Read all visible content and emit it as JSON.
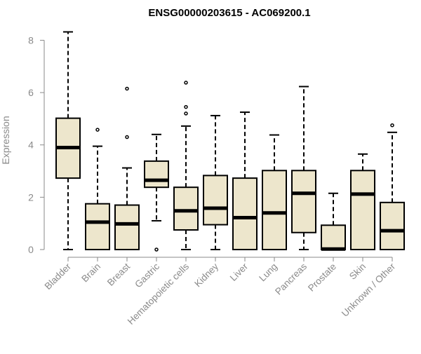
{
  "chart_data": {
    "type": "boxplot",
    "title": "ENSG00000203615 - AC069200.1",
    "xlabel": "",
    "ylabel": "Expression",
    "ylim": [
      0,
      8.4
    ],
    "yticks": [
      0,
      2,
      4,
      6,
      8
    ],
    "grid": false,
    "legend": "none",
    "colors": {
      "box_fill": "#ede6cc",
      "box_stroke": "#000000",
      "median": "#000000",
      "axis_text": "#8a8a8a",
      "axis_line": "#8a8a8a"
    },
    "categories": [
      "Bladder",
      "Brain",
      "Breast",
      "Gastric",
      "Hematopoietic cells",
      "Kidney",
      "Liver",
      "Lung",
      "Pancreas",
      "Prostate",
      "Skin",
      "Unknown / Other"
    ],
    "boxes": [
      {
        "category": "Bladder",
        "whisker_low": 0,
        "q1": 2.73,
        "median": 3.9,
        "q3": 5.02,
        "whisker_high": 8.32,
        "outliers": []
      },
      {
        "category": "Brain",
        "whisker_low": 0,
        "q1": 0,
        "median": 1.05,
        "q3": 1.75,
        "whisker_high": 3.95,
        "outliers": [
          4.58
        ]
      },
      {
        "category": "Breast",
        "whisker_low": 0,
        "q1": 0,
        "median": 0.98,
        "q3": 1.7,
        "whisker_high": 3.12,
        "outliers": [
          4.3,
          6.15
        ]
      },
      {
        "category": "Gastric",
        "whisker_low": 1.1,
        "q1": 2.38,
        "median": 2.65,
        "q3": 3.38,
        "whisker_high": 4.4,
        "outliers": [
          0
        ]
      },
      {
        "category": "Hematopoietic cells",
        "whisker_low": 0,
        "q1": 0.75,
        "median": 1.48,
        "q3": 2.38,
        "whisker_high": 4.72,
        "outliers": [
          5.2,
          5.45,
          6.38
        ]
      },
      {
        "category": "Kidney",
        "whisker_low": 0,
        "q1": 0.95,
        "median": 1.58,
        "q3": 2.83,
        "whisker_high": 5.12,
        "outliers": []
      },
      {
        "category": "Liver",
        "whisker_low": 0,
        "q1": 0,
        "median": 1.22,
        "q3": 2.73,
        "whisker_high": 5.25,
        "outliers": []
      },
      {
        "category": "Lung",
        "whisker_low": 0,
        "q1": 0,
        "median": 1.4,
        "q3": 3.02,
        "whisker_high": 4.38,
        "outliers": []
      },
      {
        "category": "Pancreas",
        "whisker_low": 0,
        "q1": 0.65,
        "median": 2.15,
        "q3": 3.02,
        "whisker_high": 6.23,
        "outliers": []
      },
      {
        "category": "Prostate",
        "whisker_low": 0,
        "q1": 0,
        "median": 0.02,
        "q3": 0.93,
        "whisker_high": 2.15,
        "outliers": []
      },
      {
        "category": "Skin",
        "whisker_low": 0,
        "q1": 0,
        "median": 2.12,
        "q3": 3.02,
        "whisker_high": 3.65,
        "outliers": []
      },
      {
        "category": "Unknown / Other",
        "whisker_low": 0,
        "q1": 0,
        "median": 0.72,
        "q3": 1.8,
        "whisker_high": 4.48,
        "outliers": [
          4.75
        ]
      }
    ]
  }
}
